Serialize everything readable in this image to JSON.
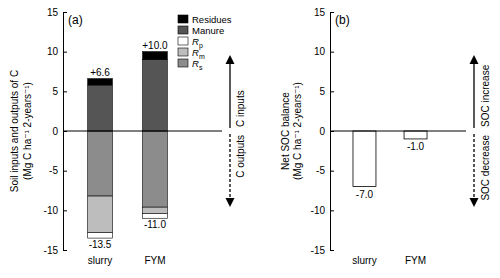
{
  "chart_data": [
    {
      "type": "bar",
      "stacked": true,
      "panel_label": "(a)",
      "y_label": [
        "Soil inputs and outputs of C",
        "(Mg C ha⁻¹ 2-years⁻¹)"
      ],
      "categories": [
        "slurry",
        "FYM"
      ],
      "series": [
        {
          "name": "Residues",
          "color": "#000000",
          "values": [
            0.8,
            1.0
          ]
        },
        {
          "name": "Manure",
          "color": "#555555",
          "values": [
            5.8,
            9.0
          ]
        },
        {
          "name": "Rp",
          "color": "#ffffff",
          "values": [
            -0.7,
            -0.6
          ]
        },
        {
          "name": "Rm",
          "color": "#bdbdbd",
          "values": [
            -4.6,
            -0.8
          ]
        },
        {
          "name": "Rs",
          "color": "#8c8c8c",
          "values": [
            -8.2,
            -9.6
          ]
        }
      ],
      "totals": {
        "inputs": {
          "values": [
            6.6,
            10.0
          ],
          "value_labels": [
            "+6.6",
            "+10.0"
          ]
        },
        "outputs": {
          "values": [
            -13.5,
            -11.0
          ],
          "value_labels": [
            "-13.5",
            "-11.0"
          ]
        }
      },
      "annotations": [
        "C inputs",
        "C outputs"
      ],
      "legend": "upper right",
      "ylim": [
        -15,
        15
      ],
      "yticks": [
        -15,
        -10,
        -5,
        0,
        5,
        10,
        15
      ]
    },
    {
      "type": "bar",
      "panel_label": "(b)",
      "y_label": [
        "Net SOC balance",
        "(Mg C ha⁻¹ 2-years⁻¹)"
      ],
      "categories": [
        "slurry",
        "FYM"
      ],
      "values": [
        -7.0,
        -1.0
      ],
      "value_labels": [
        "-7.0",
        "-1.0"
      ],
      "color": "#ffffff",
      "data_labels": true,
      "annotations": [
        "SOC increase",
        "SOC decrease"
      ],
      "ylim": [
        -15,
        15
      ],
      "yticks": [
        -15,
        -10,
        -5,
        0,
        5,
        10,
        15
      ]
    }
  ]
}
